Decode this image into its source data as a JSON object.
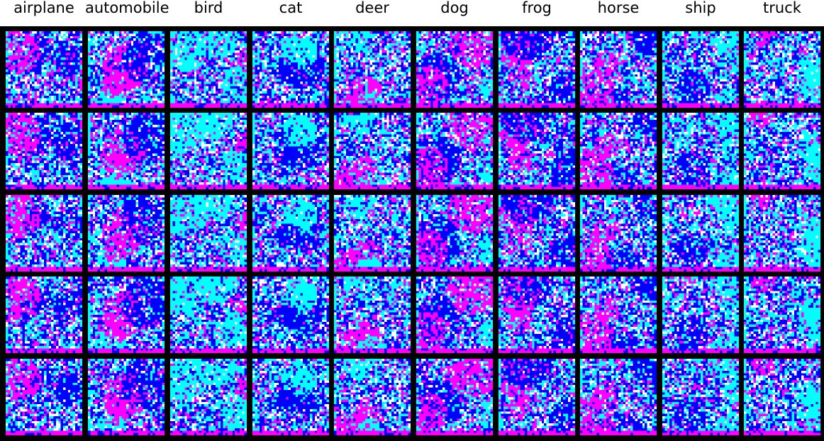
{
  "figure": {
    "class_labels": [
      "airplane",
      "automobile",
      "bird",
      "cat",
      "deer",
      "dog",
      "frog",
      "horse",
      "ship",
      "truck"
    ],
    "rows": 5,
    "columns": 10,
    "tile_pixels": 32,
    "palette": {
      "background": "#000000",
      "label_text": "#000000",
      "blue": "#0000ff",
      "cyan": "#00ffff",
      "magenta": "#ff00ff",
      "white": "#ffffff"
    }
  }
}
